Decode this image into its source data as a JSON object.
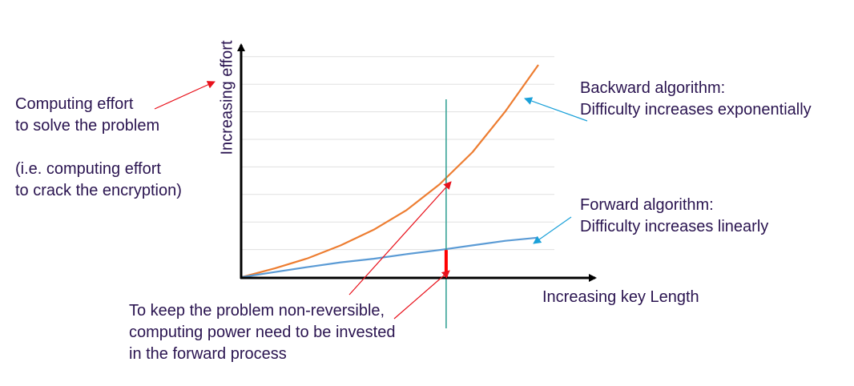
{
  "chart_data": {
    "type": "line",
    "title": "",
    "xlabel": "Increasing key Length",
    "ylabel": "Increasing effort",
    "grid": true,
    "x": [
      0,
      1,
      2,
      3,
      4,
      5,
      6,
      7,
      8,
      9
    ],
    "series": [
      {
        "color": "#ed7d31",
        "values": [
          0,
          1.9,
          4.1,
          6.9,
          10.3,
          14.6,
          20.2,
          27.2,
          36.1,
          46.2
        ]
      },
      {
        "color": "#5b9bd5",
        "values": [
          0,
          1.1,
          2.2,
          3.2,
          4.0,
          5.0,
          5.9,
          6.9,
          7.9,
          8.6
        ]
      }
    ],
    "marker_x": 6.2,
    "highlight_segment": {
      "x": 6.2,
      "y_from": 0,
      "y_to": 5.9,
      "color": "#ff0000"
    }
  },
  "annotations": {
    "left_lines": [
      "Computing effort",
      "to solve the problem",
      "",
      "(i.e. computing effort",
      "to crack the encryption)"
    ],
    "backward": [
      "Backward algorithm:",
      "Difficulty increases exponentially"
    ],
    "forward": [
      "Forward algorithm:",
      "Difficulty increases linearly"
    ],
    "bottom": [
      "To keep the problem non-reversible,",
      "computing power need to be invested",
      "in the forward process"
    ]
  },
  "colors": {
    "text": "#2a1450",
    "red_arrow": "#e8111b",
    "blue_arrow": "#1ba1d9",
    "marker": "#2a9d8f",
    "axis": "#000000",
    "grid": "#e0e0e0"
  }
}
